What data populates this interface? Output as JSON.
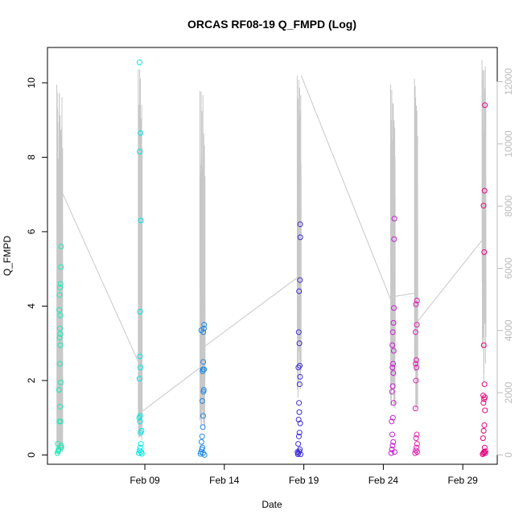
{
  "chart_data": {
    "type": "scatter",
    "title": "ORCAS RF08-19 Q_FMPD (Log)",
    "xlabel": "Date",
    "ylabel": "Q_FMPD",
    "x_axis": {
      "type": "date",
      "ticks": [
        {
          "date": "2016-02-09",
          "label": "Feb 09"
        },
        {
          "date": "2016-02-14",
          "label": "Feb 14"
        },
        {
          "date": "2016-02-19",
          "label": "Feb 19"
        },
        {
          "date": "2016-02-24",
          "label": "Feb 24"
        },
        {
          "date": "2016-02-29",
          "label": "Feb 29"
        }
      ],
      "range": [
        "2016-02-02T21:00",
        "2016-03-02T04:00"
      ]
    },
    "y_axis_left": {
      "range": [
        -0.25,
        10.95
      ],
      "ticks": [
        0,
        2,
        4,
        6,
        8,
        10
      ],
      "tick_labels": [
        "0",
        "2",
        "4",
        "6",
        "8",
        "10"
      ]
    },
    "y_axis_right": {
      "color": "#bbbbbb",
      "range": [
        -300,
        13100
      ],
      "ticks": [
        0,
        2000,
        4000,
        6000,
        8000,
        10000,
        12000
      ],
      "tick_labels": [
        "0",
        "2000",
        "4000",
        "6000",
        "8000",
        "10000",
        "12000"
      ]
    },
    "grid": false,
    "legend": "none",
    "series": [
      {
        "flight": "RF08",
        "color": "#1de9b6",
        "day": "2016-02-03",
        "points": [
          [
            "2016-02-03T12:00",
            0.05
          ],
          [
            "2016-02-03T13:00",
            0.1
          ],
          [
            "2016-02-03T14:00",
            0.15
          ],
          [
            "2016-02-03T12:30",
            0.3
          ],
          [
            "2016-02-03T15:00",
            0.9
          ],
          [
            "2016-02-03T16:00",
            1.3
          ],
          [
            "2016-02-03T14:30",
            1.75
          ],
          [
            "2016-02-03T17:00",
            1.95
          ],
          [
            "2016-02-03T15:30",
            2.45
          ],
          [
            "2016-02-03T16:30",
            2.95
          ],
          [
            "2016-02-03T15:20",
            3.15
          ],
          [
            "2016-02-03T16:10",
            3.25
          ],
          [
            "2016-02-03T15:40",
            3.4
          ],
          [
            "2016-02-03T14:50",
            3.9
          ],
          [
            "2016-02-03T16:20",
            3.75
          ],
          [
            "2016-02-03T15:10",
            4.3
          ],
          [
            "2016-02-03T15:50",
            4.5
          ],
          [
            "2016-02-03T16:40",
            4.6
          ],
          [
            "2016-02-03T17:10",
            5.05
          ],
          [
            "2016-02-03T17:30",
            5.6
          ],
          [
            "2016-02-03T18:00",
            0.2
          ],
          [
            "2016-02-03T17:40",
            0.25
          ],
          [
            "2016-02-03T16:50",
            0.9
          ],
          [
            "2016-02-03T13:40",
            0.12
          ]
        ]
      },
      {
        "flight": "RF09",
        "color": "#00e5e5",
        "day": "2016-02-08",
        "points": [
          [
            "2016-02-08T15:00",
            0.05
          ],
          [
            "2016-02-08T16:00",
            0.12
          ],
          [
            "2016-02-08T17:00",
            0.2
          ],
          [
            "2016-02-08T18:00",
            0.3
          ],
          [
            "2016-02-08T17:30",
            0.6
          ],
          [
            "2016-02-08T16:30",
            0.9
          ],
          [
            "2016-02-08T15:30",
            1.0
          ],
          [
            "2016-02-08T19:00",
            0.65
          ],
          [
            "2016-02-08T16:50",
            1.05
          ],
          [
            "2016-02-08T15:50",
            2.05
          ],
          [
            "2016-02-08T17:10",
            2.35
          ],
          [
            "2016-02-08T16:20",
            2.65
          ],
          [
            "2016-02-08T16:40",
            3.85
          ],
          [
            "2016-02-08T17:50",
            6.3
          ],
          [
            "2016-02-08T16:10",
            8.15
          ],
          [
            "2016-02-08T17:20",
            8.65
          ],
          [
            "2016-02-08T16:00",
            10.55
          ],
          [
            "2016-02-08T18:30",
            0.08
          ],
          [
            "2016-02-08T19:30",
            0.03
          ]
        ]
      },
      {
        "flight": "RF10",
        "color": "#1e88e5",
        "day": "2016-02-12",
        "points": [
          [
            "2016-02-12T12:00",
            0.03
          ],
          [
            "2016-02-12T13:00",
            0.08
          ],
          [
            "2016-02-12T14:00",
            0.15
          ],
          [
            "2016-02-12T15:00",
            0.2
          ],
          [
            "2016-02-12T13:30",
            0.35
          ],
          [
            "2016-02-12T14:30",
            0.5
          ],
          [
            "2016-02-12T15:30",
            0.75
          ],
          [
            "2016-02-12T16:00",
            1.05
          ],
          [
            "2016-02-12T14:40",
            1.45
          ],
          [
            "2016-02-12T16:30",
            1.7
          ],
          [
            "2016-02-12T17:00",
            1.75
          ],
          [
            "2016-02-12T15:10",
            2.25
          ],
          [
            "2016-02-12T15:40",
            2.3
          ],
          [
            "2016-02-12T16:10",
            2.5
          ],
          [
            "2016-02-12T17:20",
            2.3
          ],
          [
            "2016-02-12T13:10",
            3.35
          ],
          [
            "2016-02-12T16:20",
            3.3
          ],
          [
            "2016-02-12T17:10",
            3.4
          ],
          [
            "2016-02-12T17:30",
            3.5
          ],
          [
            "2016-02-12T15:50",
            0.05
          ],
          [
            "2016-02-12T18:00",
            0.0
          ]
        ]
      },
      {
        "flight": "RF11",
        "color": "#3d2bd6",
        "day": "2016-02-18",
        "points": [
          [
            "2016-02-18T15:00",
            0.02
          ],
          [
            "2016-02-18T16:00",
            0.05
          ],
          [
            "2016-02-18T17:00",
            0.1
          ],
          [
            "2016-02-18T18:00",
            0.15
          ],
          [
            "2016-02-18T15:30",
            0.3
          ],
          [
            "2016-02-18T16:30",
            0.5
          ],
          [
            "2016-02-18T17:30",
            0.6
          ],
          [
            "2016-02-18T18:30",
            0.85
          ],
          [
            "2016-02-18T16:10",
            0.95
          ],
          [
            "2016-02-18T17:10",
            1.15
          ],
          [
            "2016-02-18T16:40",
            1.4
          ],
          [
            "2016-02-18T17:40",
            1.9
          ],
          [
            "2016-02-18T18:20",
            2.1
          ],
          [
            "2016-02-18T15:50",
            2.35
          ],
          [
            "2016-02-18T17:50",
            2.4
          ],
          [
            "2016-02-18T17:20",
            3.0
          ],
          [
            "2016-02-18T16:20",
            3.3
          ],
          [
            "2016-02-18T16:50",
            4.4
          ],
          [
            "2016-02-18T18:10",
            4.7
          ],
          [
            "2016-02-18T18:40",
            5.85
          ],
          [
            "2016-02-18T18:30",
            6.2
          ],
          [
            "2016-02-18T19:10",
            0.02
          ],
          [
            "2016-02-18T14:30",
            0.08
          ]
        ]
      },
      {
        "flight": "RF12",
        "color": "#c51fd0",
        "day": "2016-02-24",
        "points": [
          [
            "2016-02-24T12:00",
            0.05
          ],
          [
            "2016-02-24T13:00",
            0.15
          ],
          [
            "2016-02-24T14:00",
            0.25
          ],
          [
            "2016-02-24T15:00",
            0.35
          ],
          [
            "2016-02-24T13:30",
            0.55
          ],
          [
            "2016-02-24T12:30",
            0.9
          ],
          [
            "2016-02-24T14:30",
            1.0
          ],
          [
            "2016-02-24T15:30",
            1.4
          ],
          [
            "2016-02-24T13:10",
            1.7
          ],
          [
            "2016-02-24T14:10",
            1.85
          ],
          [
            "2016-02-24T15:10",
            2.2
          ],
          [
            "2016-02-24T13:50",
            2.35
          ],
          [
            "2016-02-24T14:40",
            2.45
          ],
          [
            "2016-02-24T15:40",
            2.8
          ],
          [
            "2016-02-24T13:40",
            2.95
          ],
          [
            "2016-02-24T14:20",
            3.3
          ],
          [
            "2016-02-24T15:20",
            3.55
          ],
          [
            "2016-02-24T16:00",
            3.95
          ],
          [
            "2016-02-24T16:20",
            5.8
          ],
          [
            "2016-02-24T16:40",
            6.35
          ],
          [
            "2016-02-24T17:00",
            0.08
          ]
        ]
      },
      {
        "flight": "RF13",
        "color": "#e020b0",
        "day": "2016-02-26",
        "points": [
          [
            "2016-02-26T00:00",
            0.05
          ],
          [
            "2016-02-26T01:00",
            0.12
          ],
          [
            "2016-02-26T02:00",
            0.2
          ],
          [
            "2016-02-26T03:00",
            0.3
          ],
          [
            "2016-02-26T01:30",
            0.45
          ],
          [
            "2016-02-26T02:30",
            0.55
          ],
          [
            "2016-02-26T00:30",
            1.25
          ],
          [
            "2016-02-26T01:10",
            2.0
          ],
          [
            "2016-02-26T02:10",
            2.35
          ],
          [
            "2016-02-26T00:50",
            2.45
          ],
          [
            "2016-02-26T01:50",
            2.55
          ],
          [
            "2016-02-26T00:40",
            3.3
          ],
          [
            "2016-02-26T02:40",
            3.5
          ],
          [
            "2016-02-26T01:20",
            4.05
          ],
          [
            "2016-02-26T02:50",
            4.15
          ],
          [
            "2016-02-26T03:10",
            0.08
          ]
        ]
      },
      {
        "flight": "RF14",
        "color": "#e6007e",
        "day": "2016-03-01",
        "points": [
          [
            "2016-03-01T06:00",
            0.02
          ],
          [
            "2016-03-01T07:00",
            0.05
          ],
          [
            "2016-03-01T08:00",
            0.08
          ],
          [
            "2016-03-01T09:00",
            0.2
          ],
          [
            "2016-03-01T06:30",
            0.45
          ],
          [
            "2016-03-01T07:30",
            0.65
          ],
          [
            "2016-03-01T08:30",
            0.8
          ],
          [
            "2016-03-01T09:30",
            1.2
          ],
          [
            "2016-03-01T07:10",
            1.4
          ],
          [
            "2016-03-01T08:10",
            1.5
          ],
          [
            "2016-03-01T09:10",
            1.55
          ],
          [
            "2016-03-01T06:50",
            1.6
          ],
          [
            "2016-03-01T08:40",
            1.9
          ],
          [
            "2016-03-01T07:40",
            2.95
          ],
          [
            "2016-03-01T08:20",
            5.45
          ],
          [
            "2016-03-01T07:20",
            6.7
          ],
          [
            "2016-03-01T08:50",
            7.1
          ],
          [
            "2016-03-01T09:20",
            9.4
          ],
          [
            "2016-03-01T09:50",
            0.05
          ],
          [
            "2016-03-01T10:10",
            0.1
          ]
        ]
      }
    ],
    "altitude_series": {
      "color": "#c8c8c8",
      "axis": "right",
      "flights": [
        {
          "start": "2016-02-03T11:00",
          "end": "2016-02-03T20:00",
          "max": 11900,
          "base": 300
        },
        {
          "start": "2016-02-08T14:00",
          "end": "2016-02-08T20:00",
          "max": 12400,
          "base": 1300
        },
        {
          "start": "2016-02-12T11:00",
          "end": "2016-02-12T19:00",
          "max": 11700,
          "base": 2800
        },
        {
          "start": "2016-02-18T14:00",
          "end": "2016-02-18T20:00",
          "max": 12200,
          "base": 5600
        },
        {
          "start": "2016-02-24T11:00",
          "end": "2016-02-24T18:00",
          "max": 11900,
          "base": 5000
        },
        {
          "start": "2016-02-25T23:00",
          "end": "2016-02-26T04:00",
          "max": 12100,
          "base": 4300
        },
        {
          "start": "2016-03-01T05:00",
          "end": "2016-03-01T11:00",
          "max": 12700,
          "base": 6900
        }
      ],
      "connectors": [
        [
          "2016-02-03T20:00",
          8400,
          "2016-02-08T14:00",
          3000
        ],
        [
          "2016-02-08T20:00",
          1400,
          "2016-02-12T11:00",
          2800
        ],
        [
          "2016-02-12T19:00",
          3500,
          "2016-02-18T14:00",
          5700
        ],
        [
          "2016-02-18T20:00",
          12200,
          "2016-02-24T11:00",
          5000
        ],
        [
          "2016-02-24T18:00",
          5100,
          "2016-02-25T23:00",
          5200
        ],
        [
          "2016-02-26T04:00",
          4300,
          "2016-03-01T05:00",
          6900
        ]
      ]
    }
  }
}
